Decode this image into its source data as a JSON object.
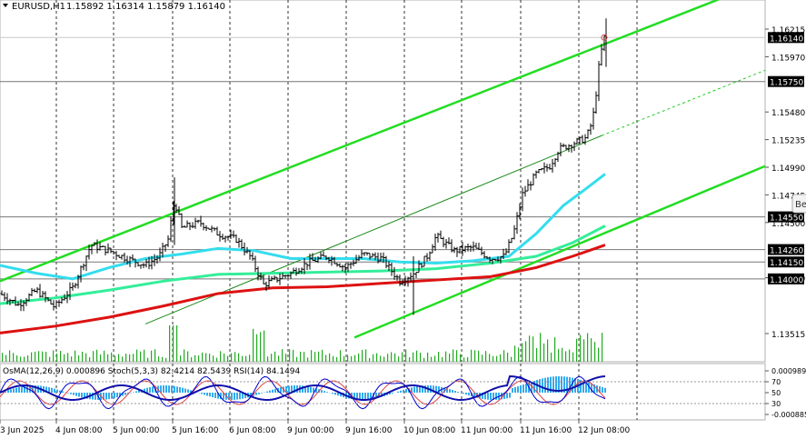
{
  "header": {
    "symbol_tf": "EURUSD,H1",
    "ohlc": "1.15892 1.16314 1.15879 1.16140"
  },
  "price_axis": {
    "ticks": [
      "1.16215",
      "1.15970",
      "1.15480",
      "1.15235",
      "1.14990",
      "1.14745",
      "1.14500",
      "1.14010",
      "1.13515"
    ],
    "markers": [
      {
        "label": "1.16140",
        "style": "dark"
      },
      {
        "label": "1.15750",
        "style": "dark"
      },
      {
        "label": "1.14550",
        "style": "dark"
      },
      {
        "label": "1.14260",
        "style": "dark"
      },
      {
        "label": "1.14150",
        "style": "dark"
      },
      {
        "label": "1.14000",
        "style": "dark"
      }
    ],
    "side_label": "Be"
  },
  "time_axis": {
    "labels": [
      "3 Jun 2025",
      "4 Jun 08:00",
      "5 Jun 00:00",
      "5 Jun 16:00",
      "6 Jun 08:00",
      "9 Jun 00:00",
      "9 Jun 16:00",
      "10 Jun 08:00",
      "11 Jun 00:00",
      "11 Jun 16:00",
      "12 Jun 08:00"
    ]
  },
  "subwindow": {
    "indicator_label": "OsMA(12,26,9) 0.000896  Stoch(5,3,3) 82.4214 82.5439  RSI(14) 84.1494",
    "ticks": [
      "0.000989",
      "70",
      "50",
      "30",
      "-0.000885"
    ]
  },
  "chart_data": {
    "type": "candlestick",
    "symbol": "EURUSD",
    "timeframe": "H1",
    "last_bar": {
      "open": 1.15892,
      "high": 1.16314,
      "low": 1.15879,
      "close": 1.1614
    },
    "horizontal_levels": [
      1.1575,
      1.1455,
      1.1426,
      1.1415,
      1.14
    ],
    "ylim": [
      1.1348,
      1.1638
    ],
    "indicators": [
      "OsMA(12,26,9)",
      "Stoch(5,3,3)",
      "RSI(14)"
    ],
    "indicator_values": {
      "osma": 0.000896,
      "stoch_main": 82.4214,
      "stoch_signal": 82.5439,
      "rsi": 84.1494
    }
  },
  "colors": {
    "channel": "#22dd22",
    "ema_fast": "#33ddee",
    "ema_mid": "#33ee99",
    "ema_slow": "#dd1111",
    "volume": "#22aa22",
    "osma": "#33aaee",
    "stoch": "#0000cc",
    "rsi": "#cc3333"
  }
}
